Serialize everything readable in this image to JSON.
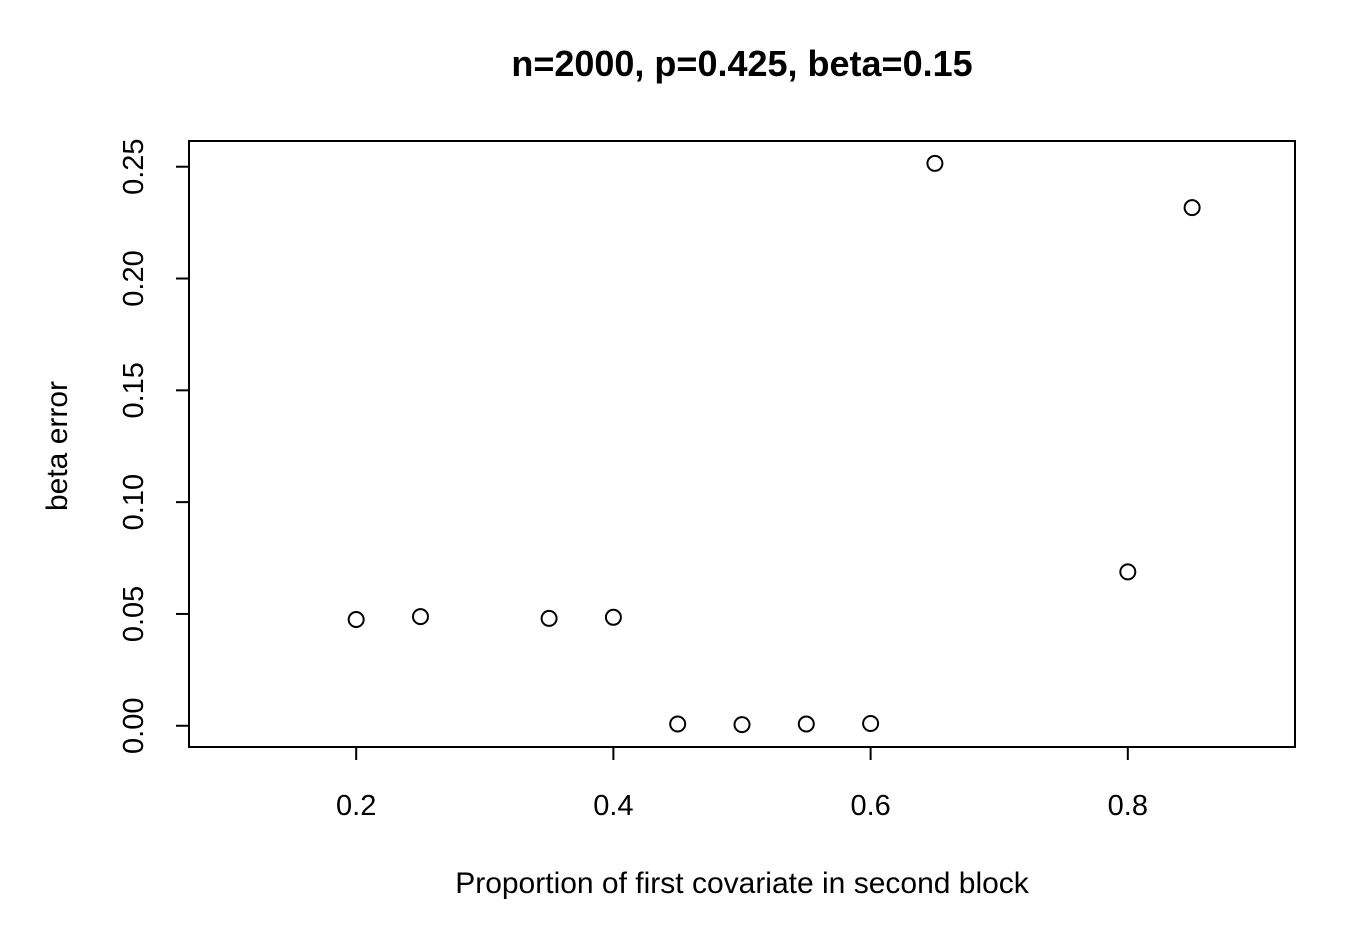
{
  "chart_data": {
    "type": "scatter",
    "title": "n=2000, p=0.425, beta=0.15",
    "xlabel": "Proportion of first covariate in second block",
    "ylabel": "beta error",
    "xlim": [
      0.07,
      0.93
    ],
    "ylim": [
      -0.0095,
      0.2615
    ],
    "x_ticks": [
      0.2,
      0.4,
      0.6,
      0.8
    ],
    "x_tick_labels": [
      "0.2",
      "0.4",
      "0.6",
      "0.8"
    ],
    "y_ticks": [
      0.0,
      0.05,
      0.1,
      0.15,
      0.2,
      0.25
    ],
    "y_tick_labels": [
      "0.00",
      "0.05",
      "0.10",
      "0.15",
      "0.20",
      "0.25"
    ],
    "grid": false,
    "legend": "none",
    "marker": "open-circle",
    "points": [
      {
        "x": 0.2,
        "y": 0.0475
      },
      {
        "x": 0.25,
        "y": 0.0488
      },
      {
        "x": 0.35,
        "y": 0.048
      },
      {
        "x": 0.4,
        "y": 0.0485
      },
      {
        "x": 0.45,
        "y": 0.0008
      },
      {
        "x": 0.5,
        "y": 0.0005
      },
      {
        "x": 0.55,
        "y": 0.0008
      },
      {
        "x": 0.6,
        "y": 0.001
      },
      {
        "x": 0.65,
        "y": 0.2515
      },
      {
        "x": 0.8,
        "y": 0.0688
      },
      {
        "x": 0.85,
        "y": 0.2317
      }
    ]
  }
}
